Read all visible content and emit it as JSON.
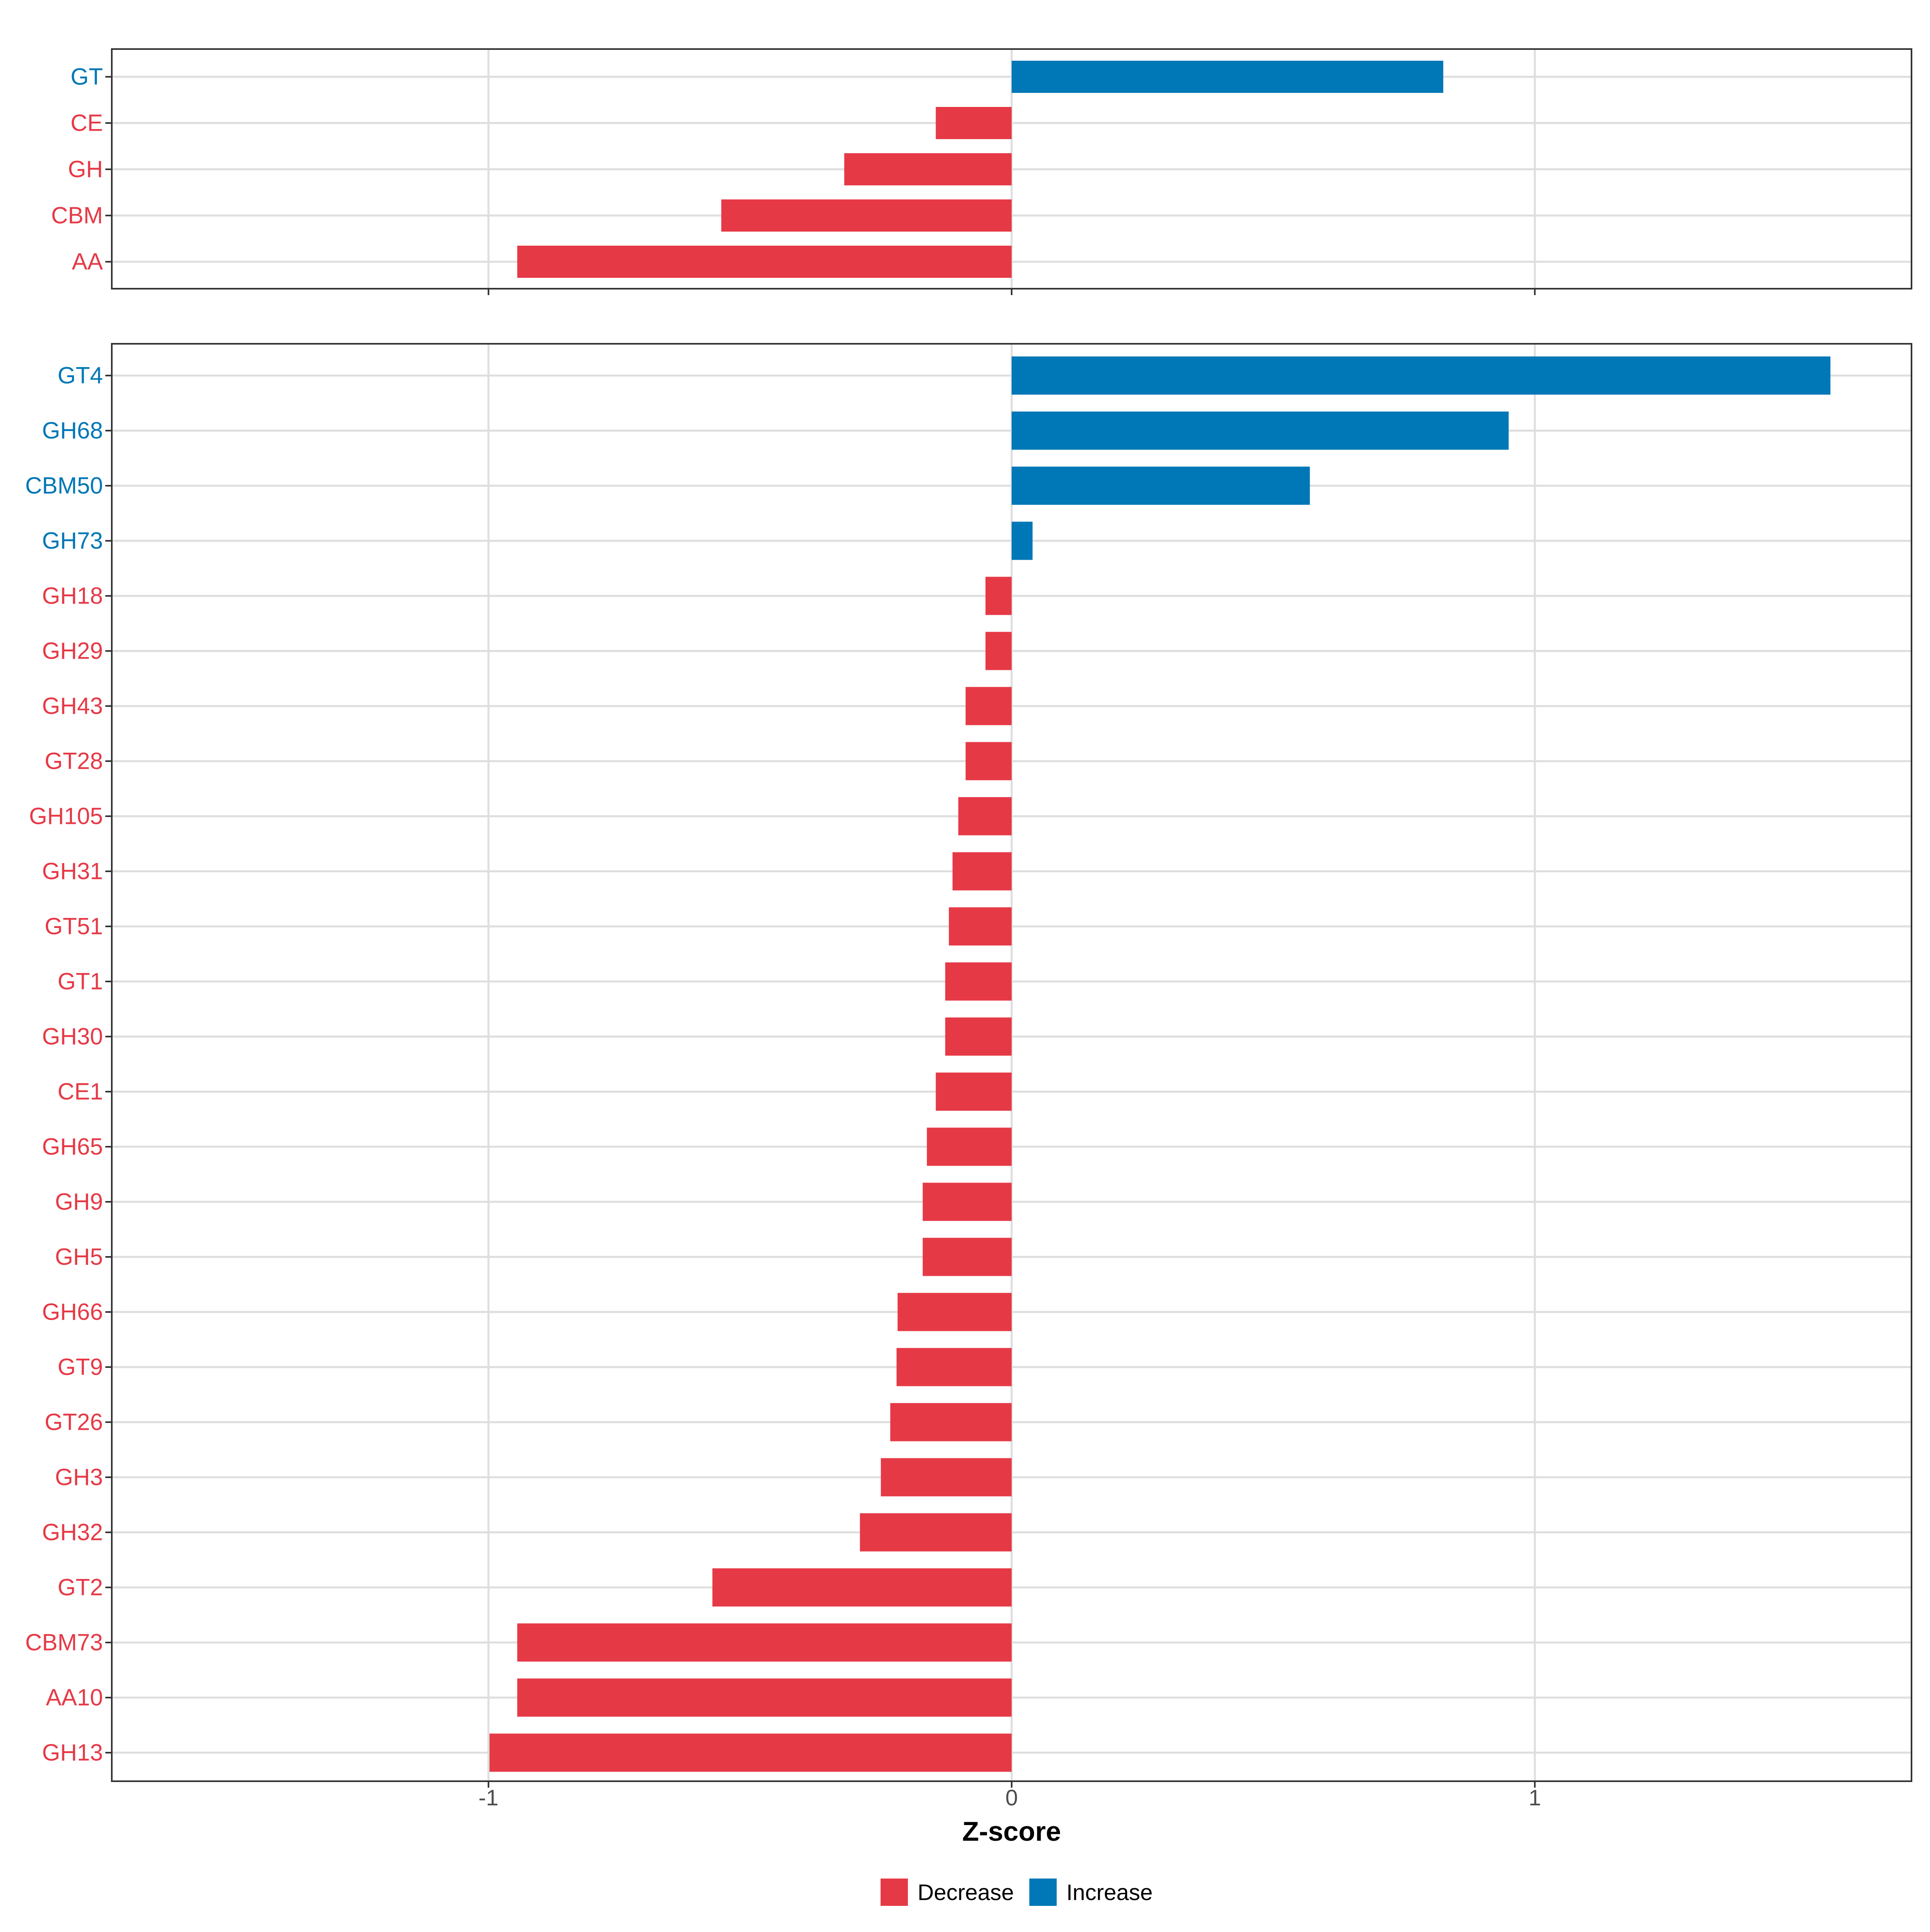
{
  "chart_data": [
    {
      "type": "bar",
      "orientation": "horizontal",
      "panel": "top",
      "categories": [
        "GT",
        "CE",
        "GH",
        "CBM",
        "AA"
      ],
      "values": [
        0.825,
        -0.145,
        -0.32,
        -0.555,
        -0.945
      ],
      "xlim": [
        -1.72,
        1.72
      ],
      "grid": true
    },
    {
      "type": "bar",
      "orientation": "horizontal",
      "panel": "bottom",
      "categories": [
        "GT4",
        "GH68",
        "CBM50",
        "GH73",
        "GH18",
        "GH29",
        "GH43",
        "GT28",
        "GH105",
        "GH31",
        "GT51",
        "GT1",
        "GH30",
        "CE1",
        "GH65",
        "GH9",
        "GH5",
        "GH66",
        "GT9",
        "GT26",
        "GH3",
        "GH32",
        "GT2",
        "CBM73",
        "AA10",
        "GH13"
      ],
      "values": [
        1.565,
        0.95,
        0.57,
        0.04,
        -0.05,
        -0.05,
        -0.088,
        -0.088,
        -0.102,
        -0.113,
        -0.12,
        -0.127,
        -0.127,
        -0.145,
        -0.162,
        -0.17,
        -0.17,
        -0.218,
        -0.22,
        -0.232,
        -0.25,
        -0.29,
        -0.572,
        -0.945,
        -0.945,
        -0.998
      ],
      "xlim": [
        -1.72,
        1.72
      ],
      "grid": true
    }
  ],
  "axis": {
    "xlabel": "Z-score",
    "ticks": [
      -1,
      0,
      1
    ],
    "tick_labels": [
      "-1",
      "0",
      "1"
    ]
  },
  "legend": {
    "placement": "bottom",
    "items": [
      {
        "label": "Decrease",
        "color": "#E63946"
      },
      {
        "label": "Increase",
        "color": "#0077B6"
      }
    ]
  },
  "colors": {
    "decrease": "#E63946",
    "increase": "#0077B6",
    "grid": "#DEDEDE",
    "frame": "#333333",
    "tick_text": "#4d4d4d"
  }
}
